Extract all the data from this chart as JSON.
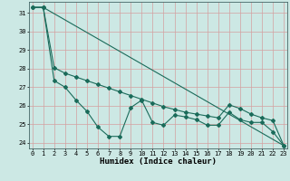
{
  "xlabel": "Humidex (Indice chaleur)",
  "bg_color": "#cce8e4",
  "grid_color": "#d4a0a0",
  "line_color": "#1a6b5a",
  "xlim": [
    -0.3,
    23.3
  ],
  "ylim": [
    23.7,
    31.6
  ],
  "yticks": [
    24,
    25,
    26,
    27,
    28,
    29,
    30,
    31
  ],
  "xticks": [
    0,
    1,
    2,
    3,
    4,
    5,
    6,
    7,
    8,
    9,
    10,
    11,
    12,
    13,
    14,
    15,
    16,
    17,
    18,
    19,
    20,
    21,
    22,
    23
  ],
  "line1_x": [
    0,
    1,
    2,
    3,
    4,
    5,
    6,
    7,
    8,
    9,
    10,
    11,
    12,
    13,
    14,
    15,
    16,
    17,
    18,
    19,
    20,
    21,
    22,
    23
  ],
  "line1_y": [
    31.3,
    31.3,
    27.35,
    27.0,
    26.3,
    25.7,
    24.85,
    24.35,
    24.35,
    25.9,
    26.3,
    25.1,
    24.95,
    25.5,
    25.4,
    25.25,
    24.95,
    24.95,
    25.65,
    25.25,
    25.1,
    25.1,
    24.6,
    23.85
  ],
  "line2_x": [
    0,
    1,
    2,
    3,
    4,
    5,
    6,
    7,
    8,
    9,
    10,
    11,
    12,
    13,
    14,
    15,
    16,
    17,
    18,
    19,
    20,
    21,
    22,
    23
  ],
  "line2_y": [
    31.3,
    31.3,
    28.05,
    27.75,
    27.55,
    27.35,
    27.15,
    26.95,
    26.75,
    26.55,
    26.35,
    26.15,
    25.95,
    25.8,
    25.65,
    25.55,
    25.45,
    25.35,
    26.05,
    25.85,
    25.55,
    25.35,
    25.2,
    23.85
  ],
  "line3_x": [
    0,
    1,
    23
  ],
  "line3_y": [
    31.3,
    31.3,
    23.85
  ],
  "linewidth": 0.8,
  "markersize": 2.0,
  "tick_fontsize": 5.0,
  "xlabel_fontsize": 6.5
}
